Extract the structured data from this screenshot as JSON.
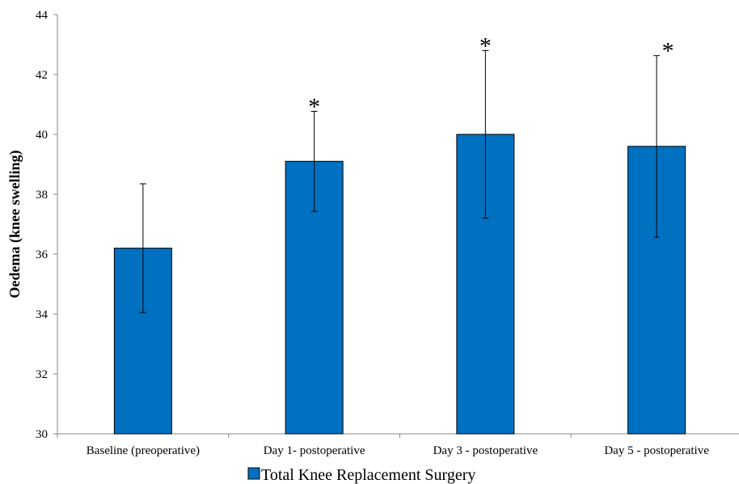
{
  "chart_data": {
    "type": "bar",
    "ylabel": "Oedema (knee swelling)",
    "xlabel": "",
    "ylim": [
      30,
      44
    ],
    "yticks": [
      30,
      32,
      34,
      36,
      38,
      40,
      42,
      44
    ],
    "grid": false,
    "legend_position": "bottom",
    "categories": [
      "Baseline (preoperative)",
      "Day 1- postoperative",
      "Day 3 - postoperative",
      "Day 5 - postoperative"
    ],
    "series": [
      {
        "name": "Total Knee Replacement Surgery",
        "color": "#0070C0",
        "values": [
          36.2,
          39.1,
          40.0,
          39.6
        ],
        "error": [
          2.15,
          1.67,
          2.8,
          3.03
        ]
      }
    ],
    "annotations": [
      "",
      "*",
      "*",
      "*"
    ]
  }
}
